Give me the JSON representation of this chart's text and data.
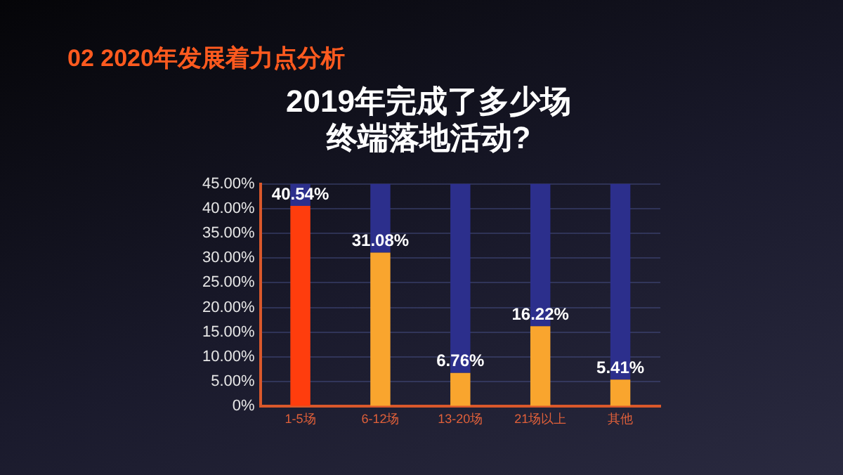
{
  "chart_data": {
    "type": "bar",
    "title": [
      "2019年完成了多少场",
      "终端落地活动?"
    ],
    "annotations": [
      "02 2020年发展着力点分析"
    ],
    "categories": [
      "1-5场",
      "6-12场",
      "13-20场",
      "21场以上",
      "其他"
    ],
    "series": [
      {
        "colors": [
          "#ff3d0d",
          "#f9a52e",
          "#f9a52e",
          "#f9a52e",
          "#f9a52e"
        ],
        "values": [
          40.54,
          31.08,
          6.76,
          16.22,
          5.41
        ],
        "value_labels": [
          "40.54%",
          "31.08%",
          "6.76%",
          "16.22%",
          "5.41%"
        ]
      },
      {
        "color": "#2c2f8c",
        "values": [
          4.46,
          13.92,
          38.24,
          28.78,
          39.59
        ]
      }
    ],
    "ylim": [
      0,
      45
    ],
    "yticks": [
      {
        "value": 0,
        "label": "0%"
      },
      {
        "value": 5,
        "label": "5.00%"
      },
      {
        "value": 10,
        "label": "10.00%"
      },
      {
        "value": 15,
        "label": "15.00%"
      },
      {
        "value": 20,
        "label": "20.00%"
      },
      {
        "value": 25,
        "label": "25.00%"
      },
      {
        "value": 30,
        "label": "30.00%"
      },
      {
        "value": 35,
        "label": "35.00%"
      },
      {
        "value": 40,
        "label": "40.00%"
      },
      {
        "value": 45,
        "label": "45.00%"
      }
    ],
    "grid": "y",
    "legend": false,
    "stacked": true
  }
}
